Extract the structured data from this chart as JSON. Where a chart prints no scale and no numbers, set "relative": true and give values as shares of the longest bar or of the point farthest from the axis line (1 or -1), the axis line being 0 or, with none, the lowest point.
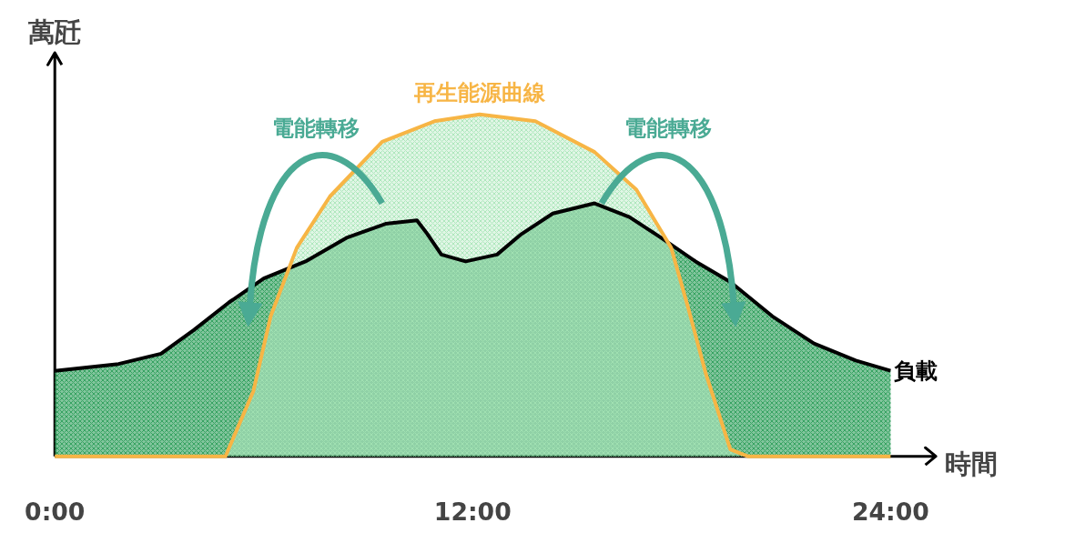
{
  "chart_data": {
    "type": "area",
    "relative": true,
    "xlabel": "時間",
    "ylabel": "萬瓩",
    "xlim": [
      0,
      25.3
    ],
    "xticks": [
      {
        "value": 0,
        "label": "0:00"
      },
      {
        "value": 12,
        "label": "12:00"
      },
      {
        "value": 24,
        "label": "24:00"
      }
    ],
    "grid": false,
    "annotations": [
      "電能轉移",
      "電能轉移"
    ],
    "series": [
      {
        "name": "負載",
        "color": "#000000",
        "x": [
          0,
          1.83,
          3.05,
          4.0,
          5.0,
          6.0,
          7.2,
          8.4,
          9.5,
          10.4,
          10.7,
          11.1,
          11.8,
          12.7,
          13.4,
          14.3,
          15.5,
          16.5,
          17.4,
          18.4,
          19.4,
          20.6,
          21.8,
          23.0,
          24
        ],
        "values": [
          0.25,
          0.27,
          0.3,
          0.37,
          0.45,
          0.52,
          0.57,
          0.64,
          0.68,
          0.69,
          0.65,
          0.59,
          0.57,
          0.59,
          0.65,
          0.71,
          0.74,
          0.7,
          0.64,
          0.57,
          0.51,
          0.41,
          0.33,
          0.28,
          0.25
        ]
      },
      {
        "name": "再生能源曲線",
        "color": "#f7b545",
        "x": [
          0,
          4.9,
          5.7,
          6.2,
          6.95,
          7.9,
          9.4,
          10.9,
          12.2,
          13.8,
          15.5,
          16.7,
          17.7,
          18.2,
          18.7,
          19.4,
          19.9,
          24
        ],
        "values": [
          0,
          0,
          0.19,
          0.41,
          0.61,
          0.76,
          0.92,
          0.98,
          1.0,
          0.98,
          0.89,
          0.78,
          0.61,
          0.43,
          0.24,
          0.02,
          0,
          0
        ]
      }
    ]
  }
}
